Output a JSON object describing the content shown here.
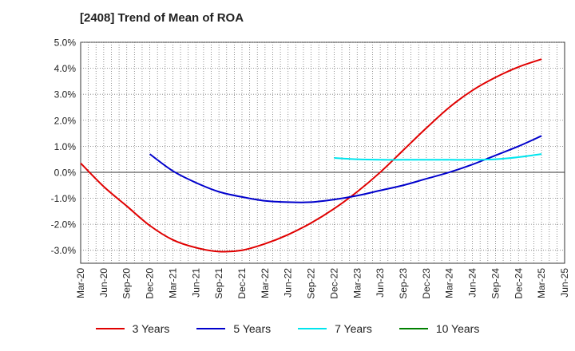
{
  "chart_data": {
    "type": "line",
    "title": "[2408]  Trend of Mean of ROA",
    "xlabel": "",
    "ylabel": "",
    "x": [
      "Mar-20",
      "Jun-20",
      "Sep-20",
      "Dec-20",
      "Mar-21",
      "Jun-21",
      "Sep-21",
      "Dec-21",
      "Mar-22",
      "Jun-22",
      "Sep-22",
      "Dec-22",
      "Mar-23",
      "Jun-23",
      "Sep-23",
      "Dec-23",
      "Mar-24",
      "Jun-24",
      "Sep-24",
      "Dec-24",
      "Mar-25",
      "Jun-25"
    ],
    "ylim": [
      -3.5,
      5.0
    ],
    "yticks": [
      -3.0,
      -2.0,
      -1.0,
      0.0,
      1.0,
      2.0,
      3.0,
      4.0,
      5.0
    ],
    "ytick_labels": [
      "-3.0%",
      "-2.0%",
      "-1.0%",
      "0.0%",
      "1.0%",
      "2.0%",
      "3.0%",
      "4.0%",
      "5.0%"
    ],
    "grid": true,
    "legend_position": "bottom",
    "series": [
      {
        "name": "3 Years",
        "color": "#e00000",
        "values": [
          0.35,
          -0.55,
          -1.3,
          -2.05,
          -2.6,
          -2.9,
          -3.05,
          -3.0,
          -2.75,
          -2.4,
          -1.95,
          -1.4,
          -0.75,
          0.0,
          0.85,
          1.7,
          2.5,
          3.15,
          3.65,
          4.05,
          4.35,
          null
        ]
      },
      {
        "name": "5 Years",
        "color": "#0000cc",
        "values": [
          null,
          null,
          null,
          0.7,
          0.05,
          -0.4,
          -0.75,
          -0.95,
          -1.1,
          -1.15,
          -1.15,
          -1.05,
          -0.9,
          -0.7,
          -0.5,
          -0.25,
          0.0,
          0.3,
          0.65,
          1.0,
          1.4,
          null
        ]
      },
      {
        "name": "7 Years",
        "color": "#00e5ee",
        "values": [
          null,
          null,
          null,
          null,
          null,
          null,
          null,
          null,
          null,
          null,
          null,
          0.55,
          0.5,
          0.48,
          0.48,
          0.48,
          0.48,
          0.48,
          0.5,
          0.58,
          0.7,
          null
        ]
      },
      {
        "name": "10 Years",
        "color": "#008000",
        "values": [
          null,
          null,
          null,
          null,
          null,
          null,
          null,
          null,
          null,
          null,
          null,
          null,
          null,
          null,
          null,
          null,
          null,
          null,
          null,
          null,
          null,
          null
        ]
      }
    ]
  }
}
